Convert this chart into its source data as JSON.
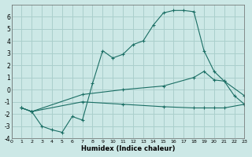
{
  "xlabel": "Humidex (Indice chaleur)",
  "bg_color": "#cce8e6",
  "grid_color": "#aacfcc",
  "line_color": "#1a6e64",
  "xlim": [
    0,
    23
  ],
  "ylim": [
    -4,
    7
  ],
  "xticks": [
    0,
    1,
    2,
    3,
    4,
    5,
    6,
    7,
    8,
    9,
    10,
    11,
    12,
    13,
    14,
    15,
    16,
    17,
    18,
    19,
    20,
    21,
    22,
    23
  ],
  "yticks": [
    -4,
    -3,
    -2,
    -1,
    0,
    1,
    2,
    3,
    4,
    5,
    6
  ],
  "line1_x": [
    1,
    2,
    3,
    4,
    5,
    6,
    7,
    8,
    9,
    10,
    11,
    12,
    13,
    14,
    15,
    16,
    17,
    18,
    19,
    20,
    21,
    22,
    23
  ],
  "line1_y": [
    -1.5,
    -1.8,
    -3.0,
    -3.3,
    -3.5,
    -2.2,
    -2.5,
    0.5,
    3.2,
    2.6,
    2.9,
    3.7,
    4.0,
    5.3,
    6.3,
    6.5,
    6.5,
    6.4,
    3.2,
    1.5,
    0.7,
    -0.5,
    -1.2
  ],
  "line2_x": [
    1,
    2,
    7,
    11,
    15,
    18,
    19,
    20,
    21,
    23
  ],
  "line2_y": [
    -1.5,
    -1.8,
    -0.4,
    0.0,
    0.3,
    1.0,
    1.5,
    0.8,
    0.7,
    -0.5
  ],
  "line3_x": [
    1,
    2,
    7,
    11,
    15,
    18,
    19,
    20,
    21,
    23
  ],
  "line3_y": [
    -1.5,
    -1.8,
    -1.0,
    -1.2,
    -1.4,
    -1.5,
    -1.5,
    -1.5,
    -1.5,
    -1.2
  ]
}
